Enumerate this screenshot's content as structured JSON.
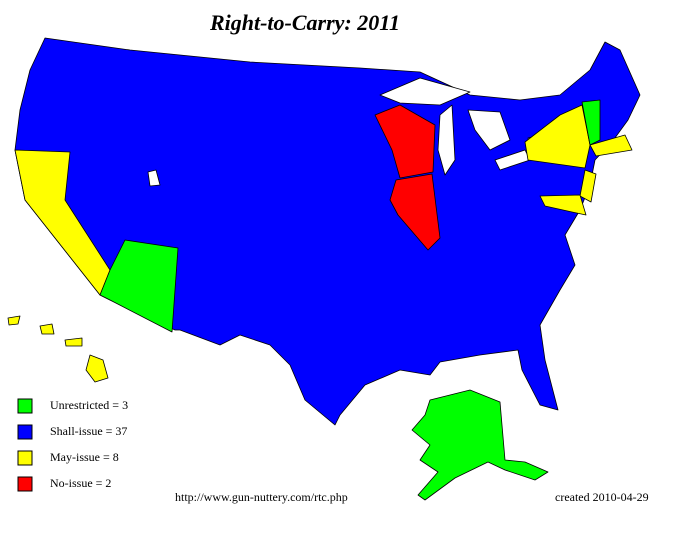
{
  "title": "Right-to-Carry: 2011",
  "legend": [
    {
      "label": "Unrestricted = 3",
      "color": "#00ff00"
    },
    {
      "label": "Shall-issue = 37",
      "color": "#0000ff"
    },
    {
      "label": "May-issue = 8",
      "color": "#ffff00"
    },
    {
      "label": "No-issue = 2",
      "color": "#ff0000"
    }
  ],
  "source_url": "http://www.gun-nuttery.com/rtc.php",
  "created": "created 2010-04-29"
}
